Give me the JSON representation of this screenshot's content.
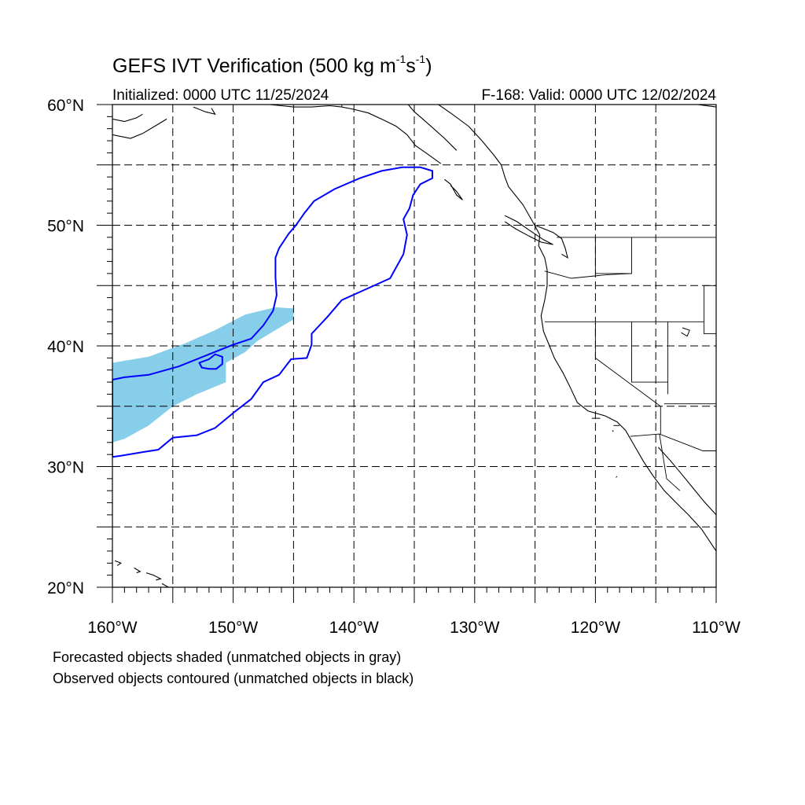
{
  "title": {
    "text_main": "GEFS IVT Verification (500 kg m",
    "sup1": "-1",
    "text_mid": "s",
    "sup2": "-1",
    "text_end": ")"
  },
  "initialized": "Initialized: 0000 UTC 11/25/2024",
  "valid": "F-168: Valid: 0000 UTC 12/02/2024",
  "legend": {
    "forecast_note": "Forecasted objects shaded (unmatched objects in gray)",
    "observed_note": "Observed objects contoured (unmatched objects in black)"
  },
  "map": {
    "lon_range": [
      -160,
      -110
    ],
    "lat_range": [
      20,
      60
    ],
    "x_ticks": [
      {
        "lon": -160,
        "label": "160°W"
      },
      {
        "lon": -150,
        "label": "150°W"
      },
      {
        "lon": -140,
        "label": "140°W"
      },
      {
        "lon": -130,
        "label": "130°W"
      },
      {
        "lon": -120,
        "label": "120°W"
      },
      {
        "lon": -110,
        "label": "110°W"
      }
    ],
    "y_ticks": [
      {
        "lat": 60,
        "label": "60°N"
      },
      {
        "lat": 50,
        "label": "50°N"
      },
      {
        "lat": 40,
        "label": "40°N"
      },
      {
        "lat": 30,
        "label": "30°N"
      },
      {
        "lat": 20,
        "label": "20°N"
      }
    ],
    "gridlines_every_deg": 5,
    "grid_style": "dashed",
    "colors": {
      "forecast_fill": "#87ceeb",
      "observed_contour": "#0000ff",
      "coastline": "#000000",
      "grid": "#000000"
    },
    "forecast_object": [
      [
        -160,
        32.0
      ],
      [
        -160,
        38.6
      ],
      [
        -157,
        39.1
      ],
      [
        -154,
        40.2
      ],
      [
        -151.5,
        41.3
      ],
      [
        -149,
        42.6
      ],
      [
        -146.5,
        43.2
      ],
      [
        -145,
        43.1
      ],
      [
        -145,
        42.2
      ],
      [
        -146.5,
        41.3
      ],
      [
        -148,
        40.4
      ],
      [
        -149,
        39.5
      ],
      [
        -150.6,
        38.6
      ],
      [
        -150.6,
        37.0
      ],
      [
        -153,
        36.0
      ],
      [
        -155,
        35.0
      ],
      [
        -157,
        33.4
      ],
      [
        -159,
        32.3
      ]
    ],
    "observed_object": [
      [
        -160,
        37.2
      ],
      [
        -159,
        37.4
      ],
      [
        -157,
        37.6
      ],
      [
        -154.5,
        38.3
      ],
      [
        -152,
        39.3
      ],
      [
        -150,
        40.1
      ],
      [
        -148.5,
        40.6
      ],
      [
        -147.5,
        41.7
      ],
      [
        -146.7,
        42.9
      ],
      [
        -146.4,
        44.2
      ],
      [
        -146.5,
        45.7
      ],
      [
        -146.5,
        47.3
      ],
      [
        -146.2,
        48.1
      ],
      [
        -145.4,
        49.3
      ],
      [
        -144.8,
        50.0
      ],
      [
        -144.1,
        51.0
      ],
      [
        -143.3,
        52.0
      ],
      [
        -141.6,
        53.0
      ],
      [
        -139.5,
        53.9
      ],
      [
        -137.7,
        54.5
      ],
      [
        -136.0,
        54.8
      ],
      [
        -134.5,
        54.8
      ],
      [
        -133.5,
        54.5
      ],
      [
        -133.5,
        53.9
      ],
      [
        -134.5,
        53.4
      ],
      [
        -135.1,
        52.5
      ],
      [
        -135.4,
        51.4
      ],
      [
        -135.9,
        50.5
      ],
      [
        -135.6,
        49.2
      ],
      [
        -135.9,
        47.6
      ],
      [
        -137,
        45.6
      ],
      [
        -139,
        44.7
      ],
      [
        -141,
        43.8
      ],
      [
        -142.2,
        42.4
      ],
      [
        -143.5,
        41.0
      ],
      [
        -143.5,
        40.1
      ],
      [
        -143.9,
        39.0
      ],
      [
        -145.2,
        38.9
      ],
      [
        -146.2,
        37.6
      ],
      [
        -147.5,
        37.0
      ],
      [
        -148.5,
        35.6
      ],
      [
        -149.8,
        34.6
      ],
      [
        -151.5,
        33.2
      ],
      [
        -153,
        32.6
      ],
      [
        -155,
        32.4
      ],
      [
        -156.2,
        31.4
      ],
      [
        -157.5,
        31.2
      ],
      [
        -159.3,
        30.9
      ],
      [
        -160,
        30.8
      ]
    ],
    "observed_inner_hole": [
      [
        -152,
        38.1
      ],
      [
        -151.4,
        38.1
      ],
      [
        -150.9,
        38.5
      ],
      [
        -150.9,
        39.1
      ],
      [
        -151.5,
        39.3
      ],
      [
        -152,
        38.9
      ],
      [
        -152.8,
        38.6
      ],
      [
        -152.6,
        38.2
      ]
    ],
    "coastlines": [
      [
        [
          -133,
          60
        ],
        [
          -132,
          59.3
        ],
        [
          -130.5,
          58.2
        ],
        [
          -129.4,
          57
        ],
        [
          -128.4,
          55.8
        ],
        [
          -127.8,
          55
        ],
        [
          -127.5,
          54
        ],
        [
          -127.2,
          53.2
        ],
        [
          -126,
          51.7
        ],
        [
          -125.2,
          50.3
        ],
        [
          -124.6,
          49.2
        ],
        [
          -124.7,
          48.3
        ],
        [
          -124.2,
          47.3
        ],
        [
          -124,
          46.3
        ],
        [
          -124,
          45
        ],
        [
          -124.2,
          43.8
        ],
        [
          -124.5,
          42.5
        ],
        [
          -124.3,
          41.2
        ],
        [
          -123.8,
          40
        ],
        [
          -123.4,
          39
        ],
        [
          -122.7,
          37.8
        ],
        [
          -122.1,
          36.6
        ],
        [
          -121.5,
          35.3
        ],
        [
          -120.6,
          34.6
        ],
        [
          -119.2,
          34.2
        ],
        [
          -118.2,
          33.7
        ],
        [
          -117.5,
          33
        ],
        [
          -116.7,
          31.6
        ],
        [
          -116,
          30.4
        ],
        [
          -115.2,
          29.2
        ],
        [
          -114.3,
          28
        ],
        [
          -113.2,
          26.9
        ],
        [
          -112.3,
          26
        ],
        [
          -111.2,
          24.8
        ],
        [
          -110,
          23
        ]
      ],
      [
        [
          -114.8,
          31.6
        ],
        [
          -113.8,
          30.5
        ],
        [
          -112.8,
          29.3
        ],
        [
          -111.9,
          28.2
        ],
        [
          -111,
          27.1
        ],
        [
          -110,
          26
        ]
      ],
      [
        [
          -135.5,
          60
        ],
        [
          -135,
          59.4
        ],
        [
          -134.3,
          58.8
        ],
        [
          -133.5,
          58.1
        ],
        [
          -132.5,
          57.2
        ],
        [
          -131.5,
          56.2
        ]
      ],
      [
        [
          -132.5,
          53.8
        ],
        [
          -132,
          53.4
        ],
        [
          -131.5,
          52.5
        ],
        [
          -131,
          52.1
        ],
        [
          -131.5,
          52.8
        ],
        [
          -132,
          53.3
        ]
      ],
      [
        [
          -127.5,
          50.8
        ],
        [
          -126.5,
          50.3
        ],
        [
          -125.5,
          49.6
        ],
        [
          -124.3,
          48.8
        ],
        [
          -123.5,
          48.4
        ],
        [
          -124.5,
          48.6
        ],
        [
          -125.5,
          49.1
        ],
        [
          -126.6,
          49.7
        ],
        [
          -127.5,
          50.3
        ]
      ],
      [
        [
          -125,
          50
        ],
        [
          -123.5,
          49.4
        ],
        [
          -122.8,
          48.9
        ],
        [
          -122.5,
          48.1
        ],
        [
          -122.3,
          47.3
        ],
        [
          -122.8,
          47.6
        ]
      ],
      [
        [
          -160,
          57.5
        ],
        [
          -158.5,
          57.2
        ],
        [
          -157.5,
          57.6
        ],
        [
          -156.5,
          58.2
        ],
        [
          -155.5,
          58.8
        ]
      ],
      [
        [
          -160,
          58.8
        ],
        [
          -159,
          58.6
        ],
        [
          -158,
          58.9
        ],
        [
          -157.5,
          59.2
        ]
      ],
      [
        [
          -153.3,
          59.8
        ],
        [
          -152.3,
          59.4
        ],
        [
          -151.5,
          59.2
        ],
        [
          -151.8,
          59.7
        ]
      ],
      [
        [
          -147,
          60
        ],
        [
          -146,
          59.9
        ],
        [
          -145,
          59.8
        ],
        [
          -143.5,
          59.8
        ],
        [
          -142,
          59.9
        ],
        [
          -141,
          59.8
        ],
        [
          -140,
          59.6
        ],
        [
          -138.8,
          59.3
        ],
        [
          -137.5,
          58.7
        ],
        [
          -136.5,
          58.2
        ],
        [
          -135.6,
          57.5
        ],
        [
          -134.9,
          56.6
        ],
        [
          -133.9,
          55.9
        ],
        [
          -132.8,
          55.1
        ]
      ],
      [
        [
          -111.5,
          60
        ],
        [
          -110,
          59.8
        ]
      ],
      [
        [
          -159.8,
          22.2
        ],
        [
          -159.3,
          22
        ],
        [
          -159.6,
          21.8
        ]
      ],
      [
        [
          -158.2,
          21.6
        ],
        [
          -157.7,
          21.3
        ],
        [
          -158,
          21.2
        ]
      ],
      [
        [
          -157.2,
          21.2
        ],
        [
          -156.6,
          21
        ],
        [
          -156,
          20.7
        ],
        [
          -156.4,
          20.6
        ]
      ],
      [
        [
          -155.9,
          20.3
        ],
        [
          -155,
          19.8
        ],
        [
          -155.5,
          19.4
        ]
      ]
    ],
    "borders": [
      [
        [
          -141,
          60
        ],
        [
          -141,
          59.8
        ]
      ],
      [
        [
          -123.2,
          49
        ],
        [
          -110,
          49
        ]
      ],
      [
        [
          -120,
          49
        ],
        [
          -120,
          46
        ],
        [
          -117,
          46
        ],
        [
          -117,
          49
        ]
      ],
      [
        [
          -124.2,
          46.2
        ],
        [
          -122,
          45.6
        ],
        [
          -119,
          45.9
        ],
        [
          -117,
          46
        ]
      ],
      [
        [
          -124.2,
          42
        ],
        [
          -111,
          42
        ]
      ],
      [
        [
          -120,
          42
        ],
        [
          -120,
          39
        ],
        [
          -114.6,
          35
        ],
        [
          -114.6,
          32.7
        ]
      ],
      [
        [
          -117,
          42
        ],
        [
          -117,
          37
        ],
        [
          -114,
          37
        ],
        [
          -114,
          36
        ]
      ],
      [
        [
          -114,
          42
        ],
        [
          -114,
          37
        ]
      ],
      [
        [
          -117.1,
          32.5
        ],
        [
          -114.7,
          32.7
        ],
        [
          -111.1,
          31.3
        ],
        [
          -110,
          31.3
        ]
      ],
      [
        [
          -111,
          45
        ],
        [
          -110,
          45
        ]
      ],
      [
        [
          -111,
          45
        ],
        [
          -111,
          41
        ],
        [
          -110,
          41
        ]
      ],
      [
        [
          -114.3,
          35.2
        ],
        [
          -110,
          35.2
        ]
      ],
      [
        [
          -114.7,
          32.7
        ],
        [
          -114.1,
          29
        ],
        [
          -113,
          28
        ]
      ]
    ],
    "inland_water": [
      [
        [
          -112.8,
          41.5
        ],
        [
          -112.2,
          41.3
        ],
        [
          -112.4,
          40.8
        ],
        [
          -112.9,
          41.1
        ]
      ],
      [
        [
          -118,
          33.4
        ],
        [
          -118.5,
          33.4
        ]
      ],
      [
        [
          -119.6,
          34
        ],
        [
          -120.3,
          34
        ]
      ],
      [
        [
          -118.5,
          32.9
        ],
        [
          -118.6,
          33
        ]
      ],
      [
        [
          -118.2,
          29.2
        ],
        [
          -118.3,
          29.1
        ]
      ]
    ]
  }
}
